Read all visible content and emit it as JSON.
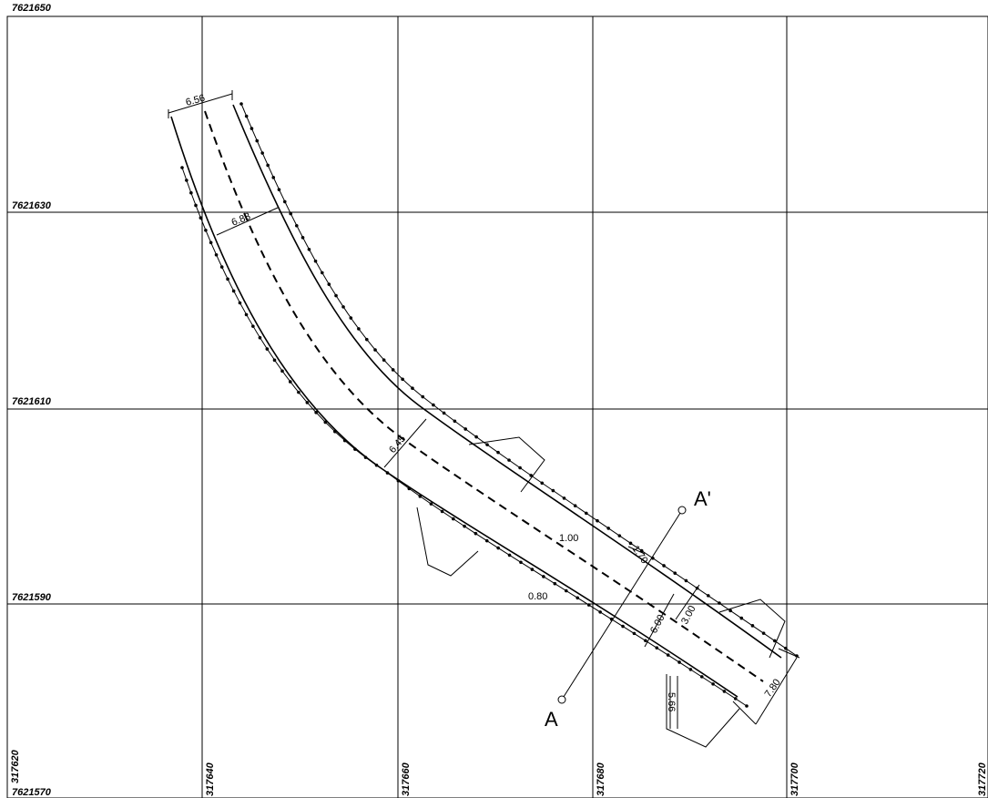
{
  "grid": {
    "northing_labels": [
      "7621650",
      "7621630",
      "7621610",
      "7621590",
      "7621570"
    ],
    "easting_labels": [
      "317620",
      "317640",
      "317660",
      "317680",
      "317700",
      "317720"
    ]
  },
  "dimensions": {
    "d656": "6.56",
    "d688": "6.88",
    "d645": "6.45",
    "d100": "1.00",
    "d170": "1.70",
    "d600": "6.00",
    "d300": "3.00",
    "d780": "7.80",
    "d080": "0.80",
    "d566": "5.66"
  },
  "section": {
    "start": "A",
    "end": "A'"
  },
  "colors": {
    "ink": "#000000",
    "paper": "#ffffff"
  }
}
